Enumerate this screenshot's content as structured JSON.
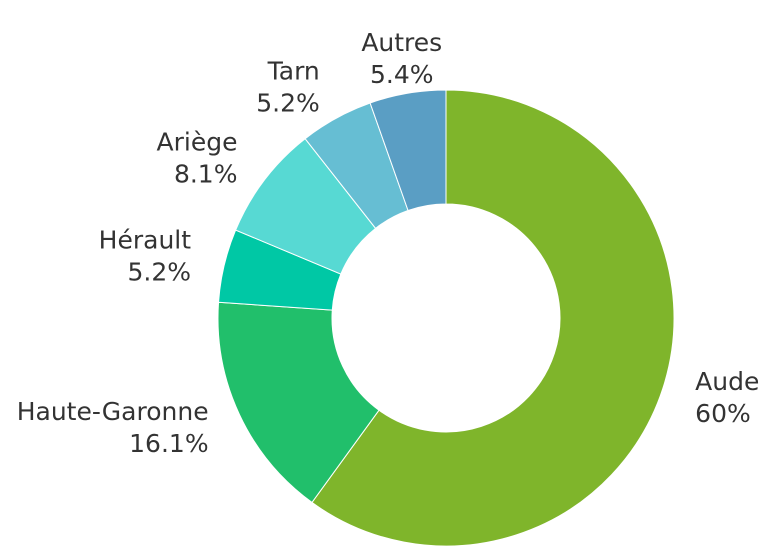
{
  "chart_data": {
    "type": "pie",
    "categories": [
      "Aude",
      "Haute-Garonne",
      "Hérault",
      "Ariège",
      "Tarn",
      "Autres"
    ],
    "values": [
      60,
      16.1,
      5.2,
      8.1,
      5.2,
      5.4
    ],
    "value_labels": [
      "60%",
      "16.1%",
      "5.2%",
      "8.1%",
      "5.2%",
      "5.4%"
    ],
    "colors": [
      "#7fb52b",
      "#21bf6b",
      "#00c8a5",
      "#57d9d3",
      "#66bed3",
      "#5a9ec4"
    ]
  }
}
